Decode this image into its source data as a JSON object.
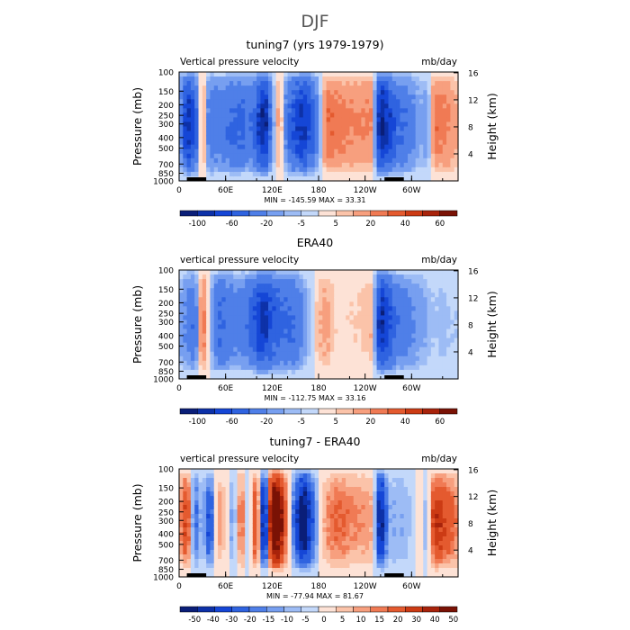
{
  "figure_title": "DJF",
  "colors": {
    "neg": [
      "#0a1e78",
      "#0d31a8",
      "#1546d6",
      "#2f63e0",
      "#4f7fe8",
      "#779ff0",
      "#9dbcf5",
      "#c3d8fa"
    ],
    "pos": [
      "#fde2d6",
      "#fbc3a9",
      "#f79f7e",
      "#f07a54",
      "#e45a2f",
      "#cc3b14",
      "#a8230b",
      "#7a1205"
    ],
    "neutral": "#ffffff"
  },
  "chart_data": [
    {
      "type": "heatmap",
      "title": "tuning7 (yrs 1979-1979)",
      "left_string": "Vertical pressure velocity",
      "right_string": "mb/day",
      "stats_text": "MIN = -145.59   MAX =  33.31",
      "x_ticks": [
        "0",
        "60E",
        "120E",
        "180",
        "120W",
        "60W"
      ],
      "y_ticks": [
        "100",
        "150",
        "200",
        "250",
        "300",
        "400",
        "500",
        "700",
        "850",
        "1000"
      ],
      "y2_ticks": [
        "4",
        "8",
        "12",
        "16"
      ],
      "ylabel": "Pressure (mb)",
      "y2label": "Height (km)",
      "colorbar_labels": [
        "-100",
        "-60",
        "-20",
        "-5",
        "5",
        "20",
        "40",
        "60"
      ],
      "contour_levels": [
        -120,
        -100,
        -80,
        -60,
        -40,
        -20,
        -10,
        -5,
        0,
        5,
        10,
        20,
        30,
        40,
        50,
        60,
        70
      ],
      "min": -145.59,
      "max": 33.31,
      "profile_lon": [
        0,
        10,
        20,
        30,
        40,
        50,
        60,
        70,
        80,
        90,
        100,
        110,
        120,
        130,
        140,
        150,
        160,
        170,
        180,
        190,
        200,
        210,
        220,
        230,
        240,
        250,
        260,
        270,
        280,
        290,
        300,
        310,
        320,
        330,
        340,
        350,
        360
      ],
      "profile_amplitude": [
        -8,
        -90,
        -70,
        25,
        -40,
        -30,
        -35,
        -45,
        -50,
        -30,
        -60,
        -110,
        -20,
        20,
        -40,
        -70,
        -90,
        -60,
        -20,
        30,
        28,
        25,
        22,
        20,
        22,
        20,
        -120,
        -80,
        -50,
        -40,
        -30,
        -10,
        -20,
        28,
        25,
        20,
        10
      ]
    },
    {
      "type": "heatmap",
      "title": "ERA40",
      "left_string": "vertical pressure velocity",
      "right_string": "mb/day",
      "stats_text": "MIN = -112.75   MAX =  33.16",
      "x_ticks": [
        "0",
        "60E",
        "120E",
        "180",
        "120W",
        "60W"
      ],
      "y_ticks": [
        "100",
        "150",
        "200",
        "250",
        "300",
        "400",
        "500",
        "700",
        "850",
        "1000"
      ],
      "y2_ticks": [
        "4",
        "8",
        "12",
        "16"
      ],
      "ylabel": "Pressure (mb)",
      "y2label": "Height (km)",
      "colorbar_labels": [
        "-100",
        "-60",
        "-20",
        "-5",
        "5",
        "20",
        "40",
        "60"
      ],
      "contour_levels": [
        -120,
        -100,
        -80,
        -60,
        -40,
        -20,
        -10,
        -5,
        0,
        5,
        10,
        20,
        30,
        40,
        50,
        60,
        70
      ],
      "min": -112.75,
      "max": 33.16,
      "profile_lon": [
        0,
        10,
        20,
        30,
        40,
        50,
        60,
        70,
        80,
        90,
        100,
        110,
        120,
        130,
        140,
        150,
        160,
        170,
        180,
        190,
        200,
        210,
        220,
        230,
        240,
        250,
        260,
        270,
        280,
        290,
        300,
        310,
        320,
        330,
        340,
        350,
        360
      ],
      "profile_amplitude": [
        -10,
        -25,
        -40,
        30,
        -5,
        -45,
        -40,
        -30,
        -30,
        -40,
        -70,
        -90,
        -60,
        -50,
        -45,
        -40,
        -20,
        -5,
        10,
        15,
        5,
        3,
        5,
        5,
        8,
        10,
        -100,
        -70,
        -40,
        -30,
        -25,
        -15,
        -10,
        -5,
        -8,
        -5,
        -5
      ]
    },
    {
      "type": "heatmap",
      "title": "tuning7 - ERA40",
      "left_string": "vertical pressure velocity",
      "right_string": "mb/day",
      "stats_text": "MIN = -77.94   MAX =  81.67",
      "x_ticks": [
        "0",
        "60E",
        "120E",
        "180",
        "120W",
        "60W"
      ],
      "y_ticks": [
        "100",
        "150",
        "200",
        "250",
        "300",
        "400",
        "500",
        "700",
        "850",
        "1000"
      ],
      "y2_ticks": [
        "4",
        "8",
        "12",
        "16"
      ],
      "ylabel": "Pressure (mb)",
      "y2label": "Height (km)",
      "colorbar_labels": [
        "-50",
        "-40",
        "-30",
        "-20",
        "-15",
        "-10",
        "-5",
        "0",
        "5",
        "10",
        "15",
        "20",
        "30",
        "40",
        "50"
      ],
      "contour_levels": [
        -60,
        -50,
        -40,
        -30,
        -20,
        -15,
        -10,
        -5,
        0,
        5,
        10,
        15,
        20,
        30,
        40,
        50,
        60
      ],
      "min": -77.94,
      "max": 81.67,
      "profile_lon": [
        0,
        10,
        20,
        30,
        40,
        50,
        60,
        70,
        80,
        90,
        100,
        110,
        120,
        130,
        140,
        150,
        160,
        170,
        180,
        190,
        200,
        210,
        220,
        230,
        240,
        250,
        260,
        270,
        280,
        290,
        300,
        310,
        320,
        330,
        340,
        350,
        360
      ],
      "profile_amplitude": [
        10,
        35,
        -25,
        -5,
        -35,
        15,
        5,
        -15,
        25,
        -10,
        40,
        -70,
        75,
        65,
        10,
        -30,
        -70,
        -35,
        -5,
        15,
        20,
        22,
        17,
        15,
        14,
        10,
        -60,
        -10,
        -10,
        -10,
        -5,
        5,
        -10,
        40,
        33,
        25,
        15
      ]
    }
  ]
}
